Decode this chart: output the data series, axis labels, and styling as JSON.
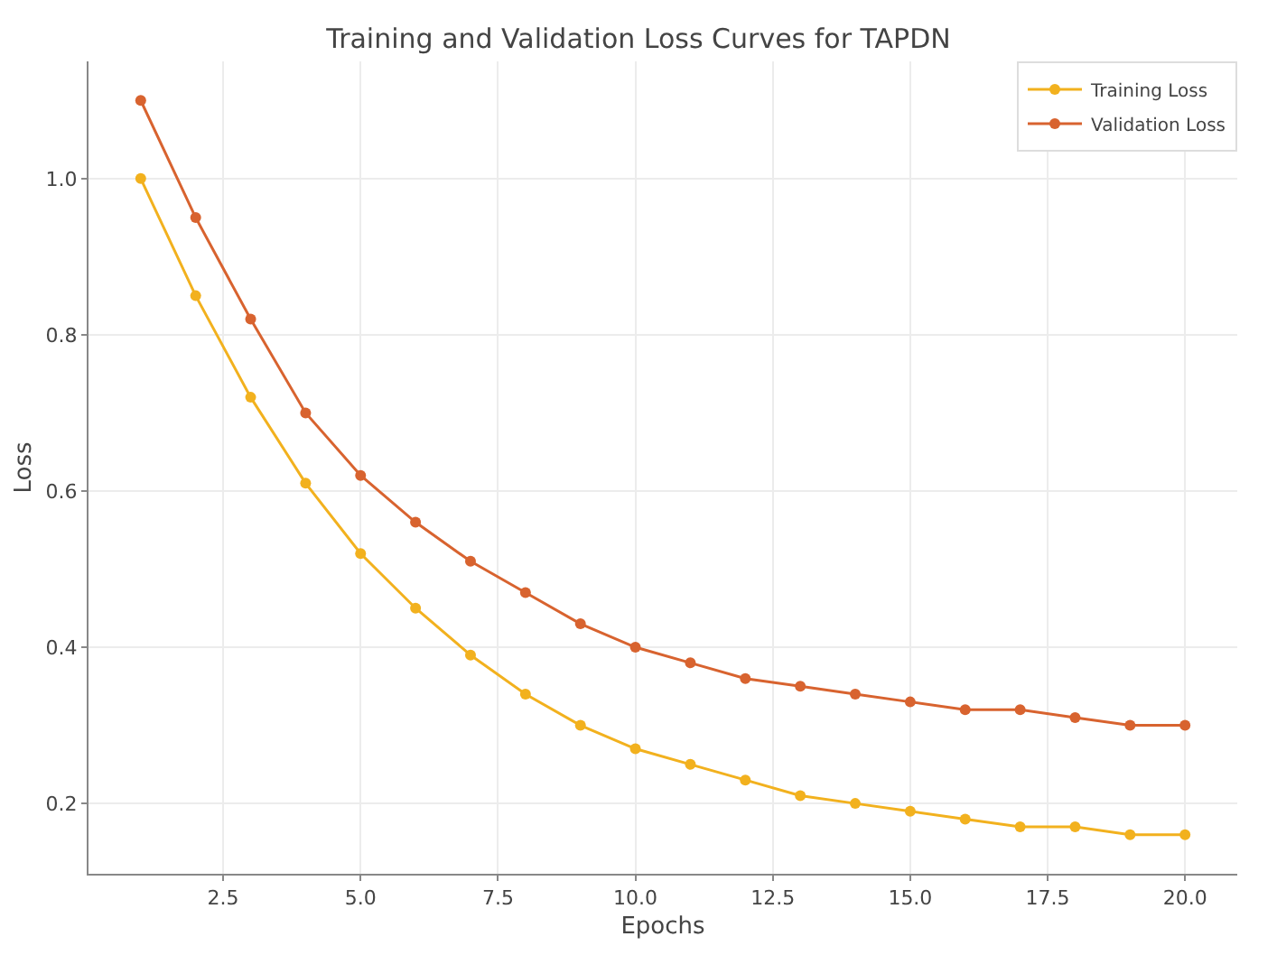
{
  "chart_data": {
    "type": "line",
    "title": "Training and Validation Loss Curves for TAPDN",
    "xlabel": "Epochs",
    "ylabel": "Loss",
    "x": [
      1,
      2,
      3,
      4,
      5,
      6,
      7,
      8,
      9,
      10,
      11,
      12,
      13,
      14,
      15,
      16,
      17,
      18,
      19,
      20
    ],
    "series": [
      {
        "name": "Training Loss",
        "color": "#f2b11e",
        "values": [
          1.0,
          0.85,
          0.72,
          0.61,
          0.52,
          0.45,
          0.39,
          0.34,
          0.3,
          0.27,
          0.25,
          0.23,
          0.21,
          0.2,
          0.19,
          0.18,
          0.17,
          0.17,
          0.16,
          0.16
        ]
      },
      {
        "name": "Validation Loss",
        "color": "#d8632f",
        "values": [
          1.1,
          0.95,
          0.82,
          0.7,
          0.62,
          0.56,
          0.51,
          0.47,
          0.43,
          0.4,
          0.38,
          0.36,
          0.35,
          0.34,
          0.33,
          0.32,
          0.32,
          0.31,
          0.3,
          0.3
        ]
      }
    ],
    "xlim": [
      0.05,
      20.95
    ],
    "xticks": [
      {
        "value": 2.5,
        "label": "2.5"
      },
      {
        "value": 5,
        "label": "5.0"
      },
      {
        "value": 7.5,
        "label": "7.5"
      },
      {
        "value": 10,
        "label": "10.0"
      },
      {
        "value": 12.5,
        "label": "12.5"
      },
      {
        "value": 15,
        "label": "15.0"
      },
      {
        "value": 17.5,
        "label": "17.5"
      },
      {
        "value": 20,
        "label": "20.0"
      }
    ],
    "ylim": [
      0.11,
      1.15
    ],
    "yticks": [
      0.2,
      0.4,
      0.6,
      0.8,
      {
        "value": 1,
        "label": "1.0"
      }
    ],
    "grid": true,
    "legend": "top right",
    "marker": "circle",
    "line_style": "solid"
  }
}
